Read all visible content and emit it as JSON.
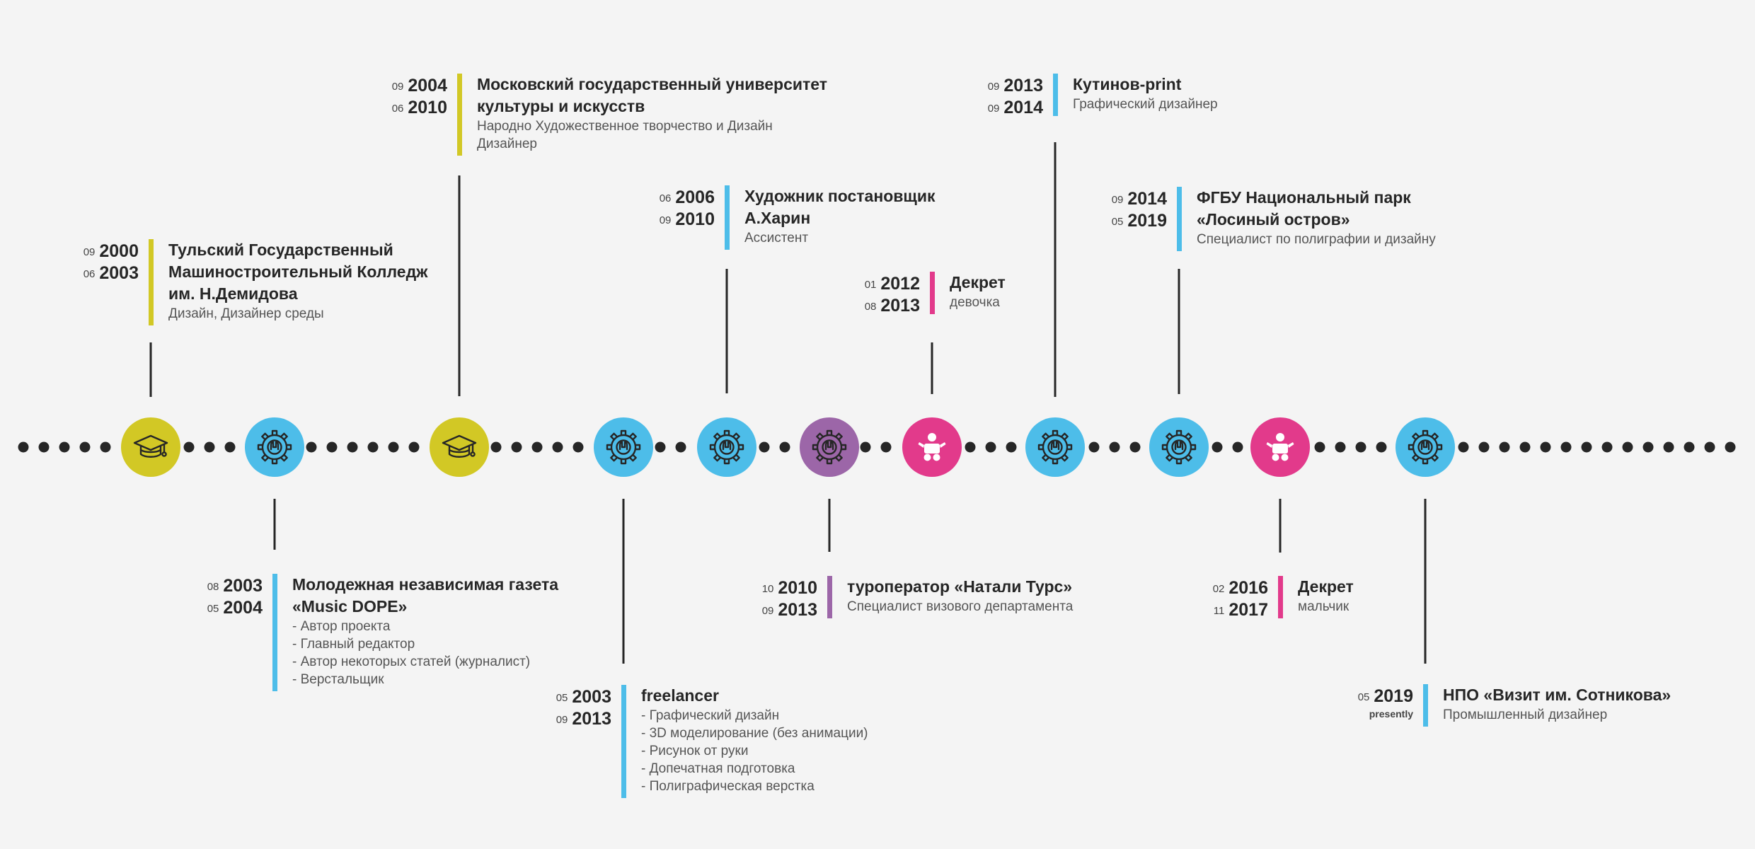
{
  "colors": {
    "education": "#d2c825",
    "work": "#4dbde9",
    "agency": "#9c66a8",
    "leave": "#e23a8b",
    "line": "#262626",
    "background": "#f4f4f4"
  },
  "timeline": {
    "entries": [
      {
        "category": "education",
        "icon": "graduation-cap-icon",
        "side": "top",
        "from": {
          "month": "09",
          "year": "2000"
        },
        "to": {
          "month": "06",
          "year": "2003"
        },
        "title": [
          "Тульский Государственный",
          "Машиностроительный Колледж",
          "им. Н.Демидова"
        ],
        "details": [
          "Дизайн, Дизайнер среды"
        ]
      },
      {
        "category": "work",
        "icon": "gear-icon",
        "side": "bottom",
        "from": {
          "month": "08",
          "year": "2003"
        },
        "to": {
          "month": "05",
          "year": "2004"
        },
        "title": [
          "Молодежная независимая газета",
          "«Music DOPE»"
        ],
        "details": [
          "- Автор проекта",
          "- Главный редактор",
          "- Автор некоторых статей (журналист)",
          "- Верстальщик"
        ]
      },
      {
        "category": "education",
        "icon": "graduation-cap-icon",
        "side": "top",
        "from": {
          "month": "09",
          "year": "2004"
        },
        "to": {
          "month": "06",
          "year": "2010"
        },
        "title": [
          "Московский государственный университет",
          "культуры и искусств"
        ],
        "details": [
          "Народно Художественное творчество и Дизайн",
          "Дизайнер"
        ]
      },
      {
        "category": "work",
        "icon": "gear-icon",
        "side": "bottom",
        "from": {
          "month": "05",
          "year": "2003"
        },
        "to": {
          "month": "09",
          "year": "2013"
        },
        "title": [
          "freelancer"
        ],
        "details": [
          "- Графический дизайн",
          "- 3D моделирование (без анимации)",
          "- Рисунок от руки",
          "- Допечатная подготовка",
          "- Полиграфическая верстка"
        ]
      },
      {
        "category": "work",
        "icon": "gear-icon",
        "side": "top",
        "from": {
          "month": "06",
          "year": "2006"
        },
        "to": {
          "month": "09",
          "year": "2010"
        },
        "title": [
          "Художник постановщик",
          "А.Харин"
        ],
        "details": [
          "Ассистент"
        ]
      },
      {
        "category": "agency",
        "icon": "gear-icon",
        "side": "bottom",
        "from": {
          "month": "10",
          "year": "2010"
        },
        "to": {
          "month": "09",
          "year": "2013"
        },
        "title": [
          "туроператор «Натали Турс»"
        ],
        "details": [
          "Специалист визового департамента"
        ]
      },
      {
        "category": "leave",
        "icon": "baby-icon",
        "side": "top",
        "from": {
          "month": "01",
          "year": "2012"
        },
        "to": {
          "month": "08",
          "year": "2013"
        },
        "title": [
          "Декрет"
        ],
        "details": [
          "девочка"
        ]
      },
      {
        "category": "work",
        "icon": "gear-icon",
        "side": "top",
        "from": {
          "month": "09",
          "year": "2013"
        },
        "to": {
          "month": "09",
          "year": "2014"
        },
        "title": [
          "Кутинов-print"
        ],
        "details": [
          "Графический дизайнер"
        ]
      },
      {
        "category": "work",
        "icon": "gear-icon",
        "side": "top",
        "from": {
          "month": "09",
          "year": "2014"
        },
        "to": {
          "month": "05",
          "year": "2019"
        },
        "title": [
          "ФГБУ Национальный парк",
          "«Лосиный остров»"
        ],
        "details": [
          "Специалист по полиграфии и дизайну"
        ]
      },
      {
        "category": "leave",
        "icon": "baby-icon",
        "side": "bottom",
        "from": {
          "month": "02",
          "year": "2016"
        },
        "to": {
          "month": "11",
          "year": "2017"
        },
        "title": [
          "Декрет"
        ],
        "details": [
          "мальчик"
        ]
      },
      {
        "category": "work",
        "icon": "gear-icon",
        "side": "bottom",
        "from": {
          "month": "05",
          "year": "2019"
        },
        "to": {
          "month": "",
          "year": "",
          "label": "presently"
        },
        "title": [
          "НПО «Визит им. Сотникова»"
        ],
        "details": [
          "Промышленный дизайнер"
        ]
      }
    ]
  }
}
